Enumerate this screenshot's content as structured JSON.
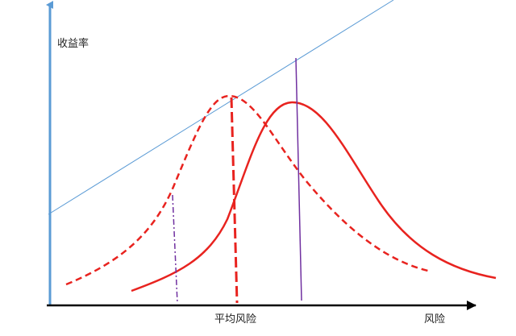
{
  "labels": {
    "y_axis": "收益率",
    "average_risk": "平均风险",
    "x_axis": "风险"
  },
  "colors": {
    "y_axis": "#5b9bd5",
    "x_axis": "#000000",
    "reference_line": "#5b9bd5",
    "curves": "#e8231f",
    "dash_dot_marker": "#7030a0",
    "vertical_marker": "#7030a0"
  }
}
